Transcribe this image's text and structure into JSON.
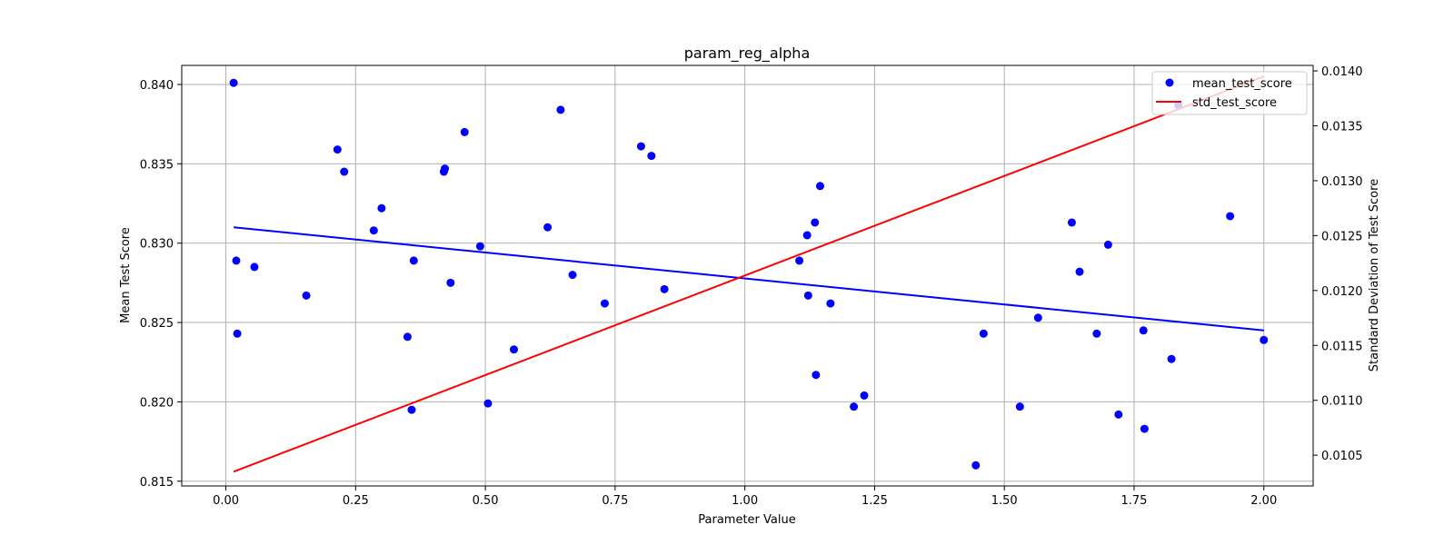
{
  "colors": {
    "mean": "#0000ff",
    "std": "#ff0000",
    "grid": "#b0b0b0"
  },
  "chart_data": {
    "type": "scatter",
    "title": "param_reg_alpha",
    "xlabel": "Parameter Value",
    "ylabel": "Mean Test Score",
    "y2label": "Standard Deviation of Test Score",
    "xlim": [
      -0.085,
      2.095
    ],
    "ylim": [
      0.8147,
      0.8412
    ],
    "y2lim": [
      0.01022,
      0.01405
    ],
    "xticks": [
      "0.00",
      "0.25",
      "0.50",
      "0.75",
      "1.00",
      "1.25",
      "1.50",
      "1.75",
      "2.00"
    ],
    "xtick_values": [
      0,
      0.25,
      0.5,
      0.75,
      1.0,
      1.25,
      1.5,
      1.75,
      2.0
    ],
    "yticks": [
      "0.815",
      "0.820",
      "0.825",
      "0.830",
      "0.835",
      "0.840"
    ],
    "ytick_values": [
      0.815,
      0.82,
      0.825,
      0.83,
      0.835,
      0.84
    ],
    "y2ticks": [
      "0.0105",
      "0.0110",
      "0.0115",
      "0.0120",
      "0.0125",
      "0.0130",
      "0.0135",
      "0.0140"
    ],
    "y2tick_values": [
      0.0105,
      0.011,
      0.0115,
      0.012,
      0.0125,
      0.013,
      0.0135,
      0.014
    ],
    "grid": true,
    "legend_position": "top-right",
    "series": [
      {
        "name": "mean_test_score",
        "type": "scatter",
        "axis": "left",
        "points": [
          [
            0.015,
            0.8401
          ],
          [
            0.02,
            0.8289
          ],
          [
            0.022,
            0.8243
          ],
          [
            0.055,
            0.8285
          ],
          [
            0.155,
            0.8267
          ],
          [
            0.215,
            0.8359
          ],
          [
            0.228,
            0.8345
          ],
          [
            0.285,
            0.8308
          ],
          [
            0.3,
            0.8322
          ],
          [
            0.35,
            0.8241
          ],
          [
            0.358,
            0.8195
          ],
          [
            0.362,
            0.8289
          ],
          [
            0.42,
            0.8345
          ],
          [
            0.422,
            0.8347
          ],
          [
            0.433,
            0.8275
          ],
          [
            0.46,
            0.837
          ],
          [
            0.49,
            0.8298
          ],
          [
            0.505,
            0.8199
          ],
          [
            0.555,
            0.8233
          ],
          [
            0.62,
            0.831
          ],
          [
            0.645,
            0.8384
          ],
          [
            0.668,
            0.828
          ],
          [
            0.73,
            0.8262
          ],
          [
            0.8,
            0.8361
          ],
          [
            0.82,
            0.8355
          ],
          [
            0.845,
            0.8271
          ],
          [
            1.105,
            0.8289
          ],
          [
            1.12,
            0.8305
          ],
          [
            1.122,
            0.8267
          ],
          [
            1.135,
            0.8313
          ],
          [
            1.137,
            0.8217
          ],
          [
            1.145,
            0.8336
          ],
          [
            1.165,
            0.8262
          ],
          [
            1.21,
            0.8197
          ],
          [
            1.23,
            0.8204
          ],
          [
            1.445,
            0.816
          ],
          [
            1.46,
            0.8243
          ],
          [
            1.53,
            0.8197
          ],
          [
            1.565,
            0.8253
          ],
          [
            1.63,
            0.8313
          ],
          [
            1.645,
            0.8282
          ],
          [
            1.678,
            0.8243
          ],
          [
            1.7,
            0.8299
          ],
          [
            1.72,
            0.8192
          ],
          [
            1.768,
            0.8245
          ],
          [
            1.77,
            0.8183
          ],
          [
            1.822,
            0.8227
          ],
          [
            1.835,
            0.8387
          ],
          [
            1.935,
            0.8317
          ],
          [
            2.0,
            0.8239
          ]
        ]
      },
      {
        "name": "mean_test_score trend",
        "type": "line",
        "axis": "left",
        "x": [
          0.015,
          2.0
        ],
        "y": [
          0.831,
          0.8245
        ]
      },
      {
        "name": "std_test_score",
        "type": "line",
        "axis": "right",
        "x": [
          0.015,
          2.0
        ],
        "y": [
          0.01035,
          0.01395
        ]
      }
    ]
  }
}
